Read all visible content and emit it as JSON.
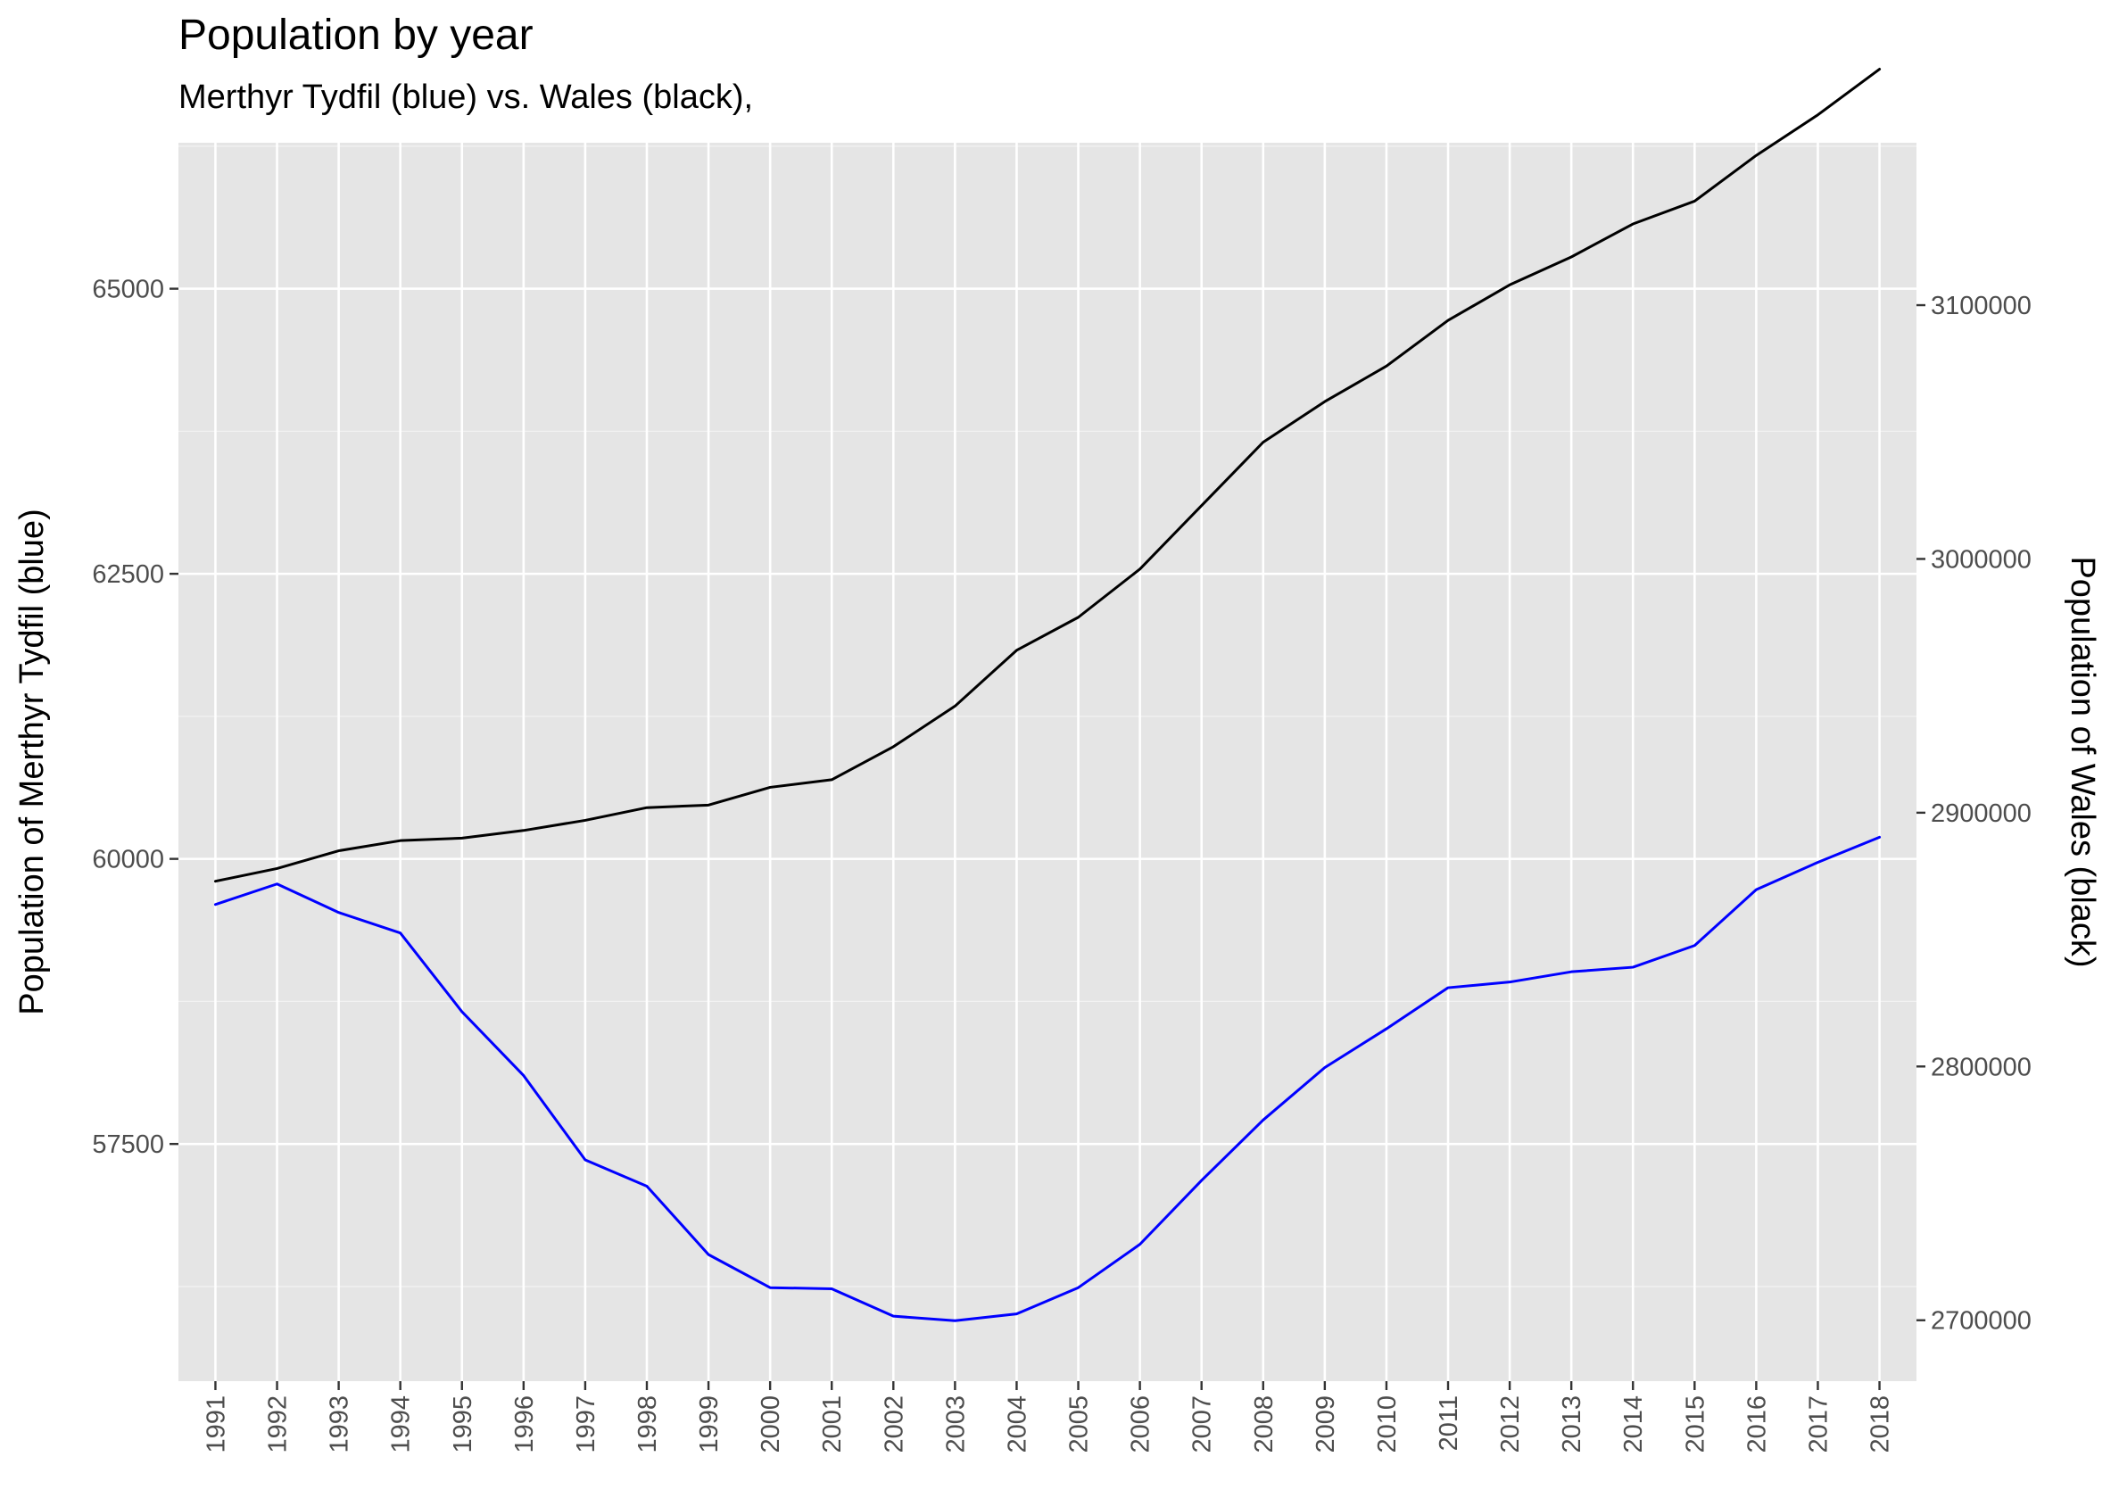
{
  "chart_data": {
    "type": "line",
    "title": "Population by year",
    "subtitle": "Merthyr Tydfil (blue) vs. Wales (black),",
    "ylabel_left": "Population of Merthyr Tydfil  (blue)",
    "ylabel_right": "Population of Wales (black)",
    "x": [
      1991,
      1992,
      1993,
      1994,
      1995,
      1996,
      1997,
      1998,
      1999,
      2000,
      2001,
      2002,
      2003,
      2004,
      2005,
      2006,
      2007,
      2008,
      2009,
      2010,
      2011,
      2012,
      2013,
      2014,
      2015,
      2016,
      2017,
      2018
    ],
    "x_tick_labels": [
      "1991",
      "1992",
      "1993",
      "1994",
      "1995",
      "1996",
      "1997",
      "1998",
      "1999",
      "2000",
      "2001",
      "2002",
      "2003",
      "2004",
      "2005",
      "2006",
      "2007",
      "2008",
      "2009",
      "2010",
      "2011",
      "2012",
      "2013",
      "2014",
      "2015",
      "2016",
      "2017",
      "2018"
    ],
    "left_axis": {
      "ticks": [
        57500,
        60000,
        62500,
        65000
      ],
      "tick_labels": [
        "57500",
        "60000",
        "62500",
        "65000"
      ],
      "ylim": [
        55420,
        66280
      ]
    },
    "right_axis": {
      "ticks": [
        2700000,
        2800000,
        2900000,
        3000000,
        3100000
      ],
      "tick_labels": [
        "2700000",
        "2800000",
        "2900000",
        "3000000",
        "3100000"
      ],
      "ylim": [
        2676000,
        3164000
      ]
    },
    "grid": true,
    "series": [
      {
        "name": "Merthyr Tydfil",
        "axis": "left",
        "color": "#0000ff",
        "values": [
          59600,
          59780,
          59530,
          59350,
          58660,
          58100,
          57360,
          57130,
          56530,
          56240,
          56230,
          55990,
          55950,
          56010,
          56240,
          56620,
          57180,
          57710,
          58170,
          58510,
          58870,
          58920,
          59010,
          59050,
          59240,
          59730,
          59970,
          60190
        ]
      },
      {
        "name": "Wales",
        "axis": "right",
        "color": "#000000",
        "values": [
          2873000,
          2878000,
          2885000,
          2889000,
          2890000,
          2893000,
          2897000,
          2902000,
          2903000,
          2910000,
          2913000,
          2926000,
          2942000,
          2964000,
          2977000,
          2996000,
          3021000,
          3046000,
          3062000,
          3076000,
          3094000,
          3108000,
          3119000,
          3132000,
          3141000,
          3159000,
          3175000,
          3193000
        ]
      }
    ]
  }
}
